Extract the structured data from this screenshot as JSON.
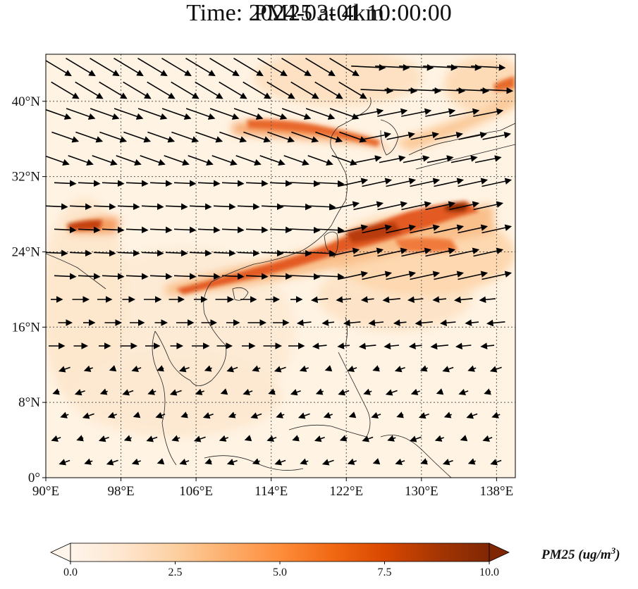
{
  "title": {
    "line1": "PM25 at 4km",
    "line2": "Time: 2024-03-01 10:00:00"
  },
  "map": {
    "lon_range": [
      90,
      140
    ],
    "lat_range": [
      0,
      45
    ],
    "lon_ticks": [
      {
        "value": 90,
        "label": "90°E"
      },
      {
        "value": 98,
        "label": "98°E"
      },
      {
        "value": 106,
        "label": "106°E"
      },
      {
        "value": 114,
        "label": "114°E"
      },
      {
        "value": 122,
        "label": "122°E"
      },
      {
        "value": 130,
        "label": "130°E"
      },
      {
        "value": 138,
        "label": "138°E"
      }
    ],
    "lat_ticks": [
      {
        "value": 0,
        "label": "0°"
      },
      {
        "value": 8,
        "label": "8°N"
      },
      {
        "value": 16,
        "label": "16°N"
      },
      {
        "value": 24,
        "label": "24°N"
      },
      {
        "value": 32,
        "label": "32°N"
      },
      {
        "value": 40,
        "label": "40°N"
      }
    ],
    "gridlines": true,
    "background_color": "#fff5e8",
    "wind_arrows": true
  },
  "colorbar": {
    "label": "PM25 (ug/m",
    "label_superscript": "3",
    "label_close": ")",
    "range": [
      0.0,
      10.0
    ],
    "ticks": [
      {
        "value": 0.0,
        "label": "0.0"
      },
      {
        "value": 2.5,
        "label": "2.5"
      },
      {
        "value": 5.0,
        "label": "5.0"
      },
      {
        "value": 7.5,
        "label": "7.5"
      },
      {
        "value": 10.0,
        "label": "10.0"
      }
    ],
    "extend": "both",
    "colormap": [
      "#fff5eb",
      "#fee6ce",
      "#fdd0a2",
      "#fdae6b",
      "#fd8d3c",
      "#f16913",
      "#d94801",
      "#a63603",
      "#7f2704"
    ]
  }
}
